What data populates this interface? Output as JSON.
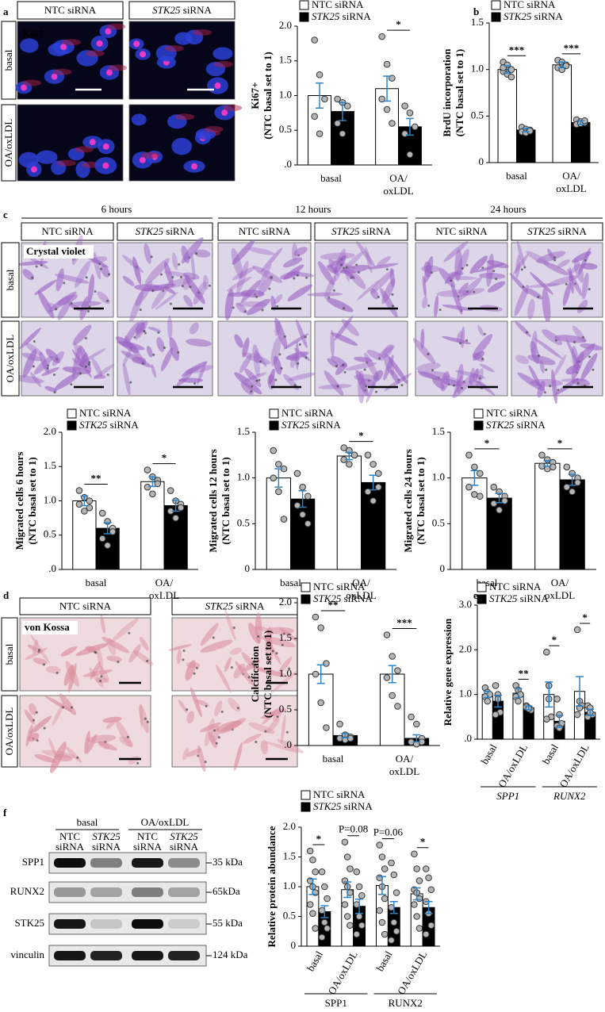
{
  "panel_labels": [
    "a",
    "b",
    "c",
    "d",
    "e",
    "f"
  ],
  "image_panels": {
    "a": {
      "columns": [
        "NTC siRNA",
        "STK25 siRNA"
      ],
      "rows": [
        "basal",
        "OA/oxLDL"
      ],
      "stain": "Ki67"
    },
    "c": {
      "times": [
        "6 hours",
        "12 hours",
        "24 hours"
      ],
      "columns": [
        "NTC siRNA",
        "STK25 siRNA"
      ],
      "rows": [
        "basal",
        "OA/oxLDL"
      ],
      "stain": "Crystal violet"
    },
    "d": {
      "columns": [
        "NTC siRNA",
        "STK25 siRNA"
      ],
      "rows": [
        "basal",
        "OA/oxLDL"
      ],
      "stain": "von Kossa"
    }
  },
  "blot": {
    "conditions": [
      "basal",
      "OA/oxLDL"
    ],
    "lanes": [
      [
        "NTC",
        "siRNA"
      ],
      [
        "STK25",
        "siRNA"
      ],
      [
        "NTC",
        "siRNA"
      ],
      [
        "STK25",
        "siRNA"
      ]
    ],
    "proteins": [
      "SPP1",
      "RUNX2",
      "STK25",
      "vinculin"
    ],
    "sizes": [
      "35 kDa",
      "65kDa",
      "55 kDa",
      "124 kDa"
    ]
  },
  "chart_data": [
    {
      "type": "bar",
      "ylabel": [
        "Ki67+",
        "(NTC basal set to 1)"
      ],
      "categories": [
        [
          "basal"
        ],
        [
          "OA/",
          "oxLDL"
        ]
      ],
      "ylim": [
        0,
        2
      ],
      "yticks": [
        {
          "value": 0,
          "label": ".0"
        },
        0.5,
        {
          "value": 1,
          "label": "1.0"
        },
        1.5,
        {
          "value": 2,
          "label": "2.0"
        }
      ],
      "series": [
        {
          "name": "NTC siRNA",
          "color": "#ffffff",
          "values": [
            1.0,
            1.1
          ],
          "errors": [
            0.18,
            0.18
          ],
          "points": [
            [
              1.8,
              1.3,
              0.95,
              0.7,
              0.45
            ],
            [
              1.85,
              1.45,
              1.25,
              0.95,
              0.8,
              0.6
            ]
          ]
        },
        {
          "name": "STK25 siRNA",
          "color": "#000000",
          "values": [
            0.77,
            0.55
          ],
          "errors": [
            0.13,
            0.12
          ],
          "points": [
            [
              0.95,
              0.9,
              0.85,
              0.6,
              0.45
            ],
            [
              0.85,
              0.75,
              0.55,
              0.45,
              0.15
            ]
          ]
        }
      ],
      "significance": [
        null,
        "*"
      ]
    },
    {
      "type": "bar",
      "ylabel": [
        "BrdU incorporation",
        "(NTC basal set to 1)"
      ],
      "categories": [
        [
          "basal"
        ],
        [
          "OA/",
          "oxLDL"
        ]
      ],
      "ylim": [
        0,
        1.5
      ],
      "yticks": [
        0,
        0.5,
        {
          "value": 1,
          "label": "1.0"
        },
        1.5
      ],
      "series": [
        {
          "name": "NTC siRNA",
          "color": "#ffffff",
          "values": [
            1.0,
            1.05
          ],
          "errors": [
            0.04,
            0.03
          ],
          "points": [
            [
              1.08,
              1.05,
              1.0,
              0.98,
              0.95,
              0.92,
              1.02
            ],
            [
              1.1,
              1.08,
              1.05,
              1.02,
              1.0,
              1.04
            ]
          ]
        },
        {
          "name": "STK25 siRNA",
          "color": "#000000",
          "values": [
            0.35,
            0.43
          ],
          "errors": [
            0.02,
            0.02
          ],
          "points": [
            [
              0.38,
              0.36,
              0.35,
              0.33,
              0.32,
              0.34
            ],
            [
              0.46,
              0.44,
              0.43,
              0.41,
              0.42,
              0.45
            ]
          ]
        }
      ],
      "significance": [
        "***",
        "***"
      ]
    },
    {
      "type": "bar",
      "ylabel": [
        "Migrated cells 6 hours",
        "(NTC basal set to 1)"
      ],
      "categories": [
        [
          "basal"
        ],
        [
          "OA/",
          "oxLDL"
        ]
      ],
      "ylim": [
        0,
        2
      ],
      "yticks": [
        {
          "value": 0,
          "label": ".0"
        },
        0.5,
        {
          "value": 1,
          "label": "1.0"
        },
        1.5,
        {
          "value": 2,
          "label": "2.0"
        }
      ],
      "series": [
        {
          "name": "NTC siRNA",
          "color": "#ffffff",
          "values": [
            1.0,
            1.28
          ],
          "errors": [
            0.07,
            0.07
          ],
          "points": [
            [
              1.15,
              1.05,
              1.0,
              0.95,
              0.85,
              0.9
            ],
            [
              1.45,
              1.35,
              1.3,
              1.2,
              1.1,
              1.25
            ]
          ]
        },
        {
          "name": "STK25 siRNA",
          "color": "#000000",
          "values": [
            0.6,
            0.93
          ],
          "errors": [
            0.08,
            0.08
          ],
          "points": [
            [
              0.82,
              0.7,
              0.6,
              0.45,
              0.35,
              0.55
            ],
            [
              1.15,
              1.0,
              0.95,
              0.85,
              0.75,
              0.9
            ]
          ]
        }
      ],
      "significance": [
        "**",
        "*"
      ]
    },
    {
      "type": "bar",
      "ylabel": [
        "Migrated cells 12 hours",
        "(NTC basal set to 1)"
      ],
      "categories": [
        [
          "basal"
        ],
        [
          "OA/",
          "oxLDL"
        ]
      ],
      "ylim": [
        0,
        1.5
      ],
      "yticks": [
        0,
        0.5,
        {
          "value": 1,
          "label": "1.0"
        },
        1.5
      ],
      "series": [
        {
          "name": "NTC siRNA",
          "color": "#ffffff",
          "values": [
            1.0,
            1.24
          ],
          "errors": [
            0.1,
            0.04
          ],
          "points": [
            [
              1.3,
              1.15,
              1.1,
              1.0,
              0.85,
              0.55
            ],
            [
              1.33,
              1.3,
              1.25,
              1.2,
              1.15,
              1.25
            ]
          ]
        },
        {
          "name": "STK25 siRNA",
          "color": "#000000",
          "values": [
            0.77,
            0.95
          ],
          "errors": [
            0.09,
            0.08
          ],
          "points": [
            [
              1.05,
              0.9,
              0.8,
              0.7,
              0.6,
              0.5
            ],
            [
              1.25,
              1.15,
              1.05,
              0.85,
              0.75,
              0.9
            ]
          ]
        }
      ],
      "significance": [
        null,
        "*"
      ]
    },
    {
      "type": "bar",
      "ylabel": [
        "Migrated cells 24 hours",
        "(NTC basal set to 1)"
      ],
      "categories": [
        [
          "basal"
        ],
        [
          "OA/",
          "oxLDL"
        ]
      ],
      "ylim": [
        0,
        1.5
      ],
      "yticks": [
        0,
        0.5,
        {
          "value": 1,
          "label": "1.0"
        },
        1.5
      ],
      "series": [
        {
          "name": "NTC siRNA",
          "color": "#ffffff",
          "values": [
            1.0,
            1.16
          ],
          "errors": [
            0.08,
            0.03
          ],
          "points": [
            [
              1.25,
              1.12,
              1.05,
              0.9,
              0.82,
              0.8
            ],
            [
              1.25,
              1.2,
              1.17,
              1.13,
              1.1,
              1.12
            ]
          ]
        },
        {
          "name": "STK25 siRNA",
          "color": "#000000",
          "values": [
            0.78,
            0.98
          ],
          "errors": [
            0.05,
            0.06
          ],
          "points": [
            [
              0.9,
              0.85,
              0.8,
              0.72,
              0.65,
              0.75
            ],
            [
              1.12,
              1.05,
              1.0,
              0.9,
              0.85,
              0.95
            ]
          ]
        }
      ],
      "significance": [
        "*",
        "*"
      ]
    },
    {
      "type": "bar",
      "ylabel": [
        "Calcification",
        "(NTC basal set to 1)"
      ],
      "categories": [
        [
          "basal"
        ],
        [
          "OA/",
          "oxLDL"
        ]
      ],
      "ylim": [
        0,
        2
      ],
      "yticks": [
        {
          "value": 0,
          "label": ".0"
        },
        0.5,
        {
          "value": 1,
          "label": "1.0"
        },
        1.5,
        {
          "value": 2,
          "label": "2.0"
        }
      ],
      "series": [
        {
          "name": "NTC siRNA",
          "color": "#ffffff",
          "values": [
            1.0,
            1.0
          ],
          "errors": [
            0.13,
            0.12
          ],
          "points": [
            [
              1.8,
              1.65,
              1.15,
              1.0,
              0.6,
              0.25
            ],
            [
              1.55,
              1.25,
              1.05,
              0.95,
              0.7,
              0.55
            ]
          ]
        },
        {
          "name": "STK25 siRNA",
          "color": "#000000",
          "values": [
            0.14,
            0.1
          ],
          "errors": [
            0.03,
            0.05
          ],
          "points": [
            [
              0.3,
              0.15,
              0.12,
              0.1,
              0.08,
              0.1
            ],
            [
              0.4,
              0.3,
              0.1,
              0.05,
              0.02,
              0.05
            ]
          ]
        }
      ],
      "significance": [
        "**",
        "***"
      ]
    },
    {
      "type": "bar",
      "ylabel": [
        "Relative gene expression"
      ],
      "categories": [
        "basal",
        "OA/oxLDL",
        "basal",
        "OA/oxLDL"
      ],
      "groups": [
        "SPP1",
        "RUNX2"
      ],
      "groups_italic": true,
      "ylim": [
        0,
        3
      ],
      "yticks": [
        {
          "value": 0,
          "label": ".0"
        },
        {
          "value": 1,
          "label": "1.0"
        },
        {
          "value": 2,
          "label": "2.0"
        },
        {
          "value": 3,
          "label": "3.0"
        }
      ],
      "series": [
        {
          "name": "NTC siRNA",
          "color": "#ffffff",
          "values": [
            1.0,
            1.03,
            1.0,
            1.07
          ],
          "errors": [
            0.07,
            0.1,
            0.28,
            0.33
          ],
          "points": [
            [
              1.15,
              1.05,
              1.0,
              0.95,
              0.85
            ],
            [
              1.2,
              1.1,
              1.0,
              0.95,
              0.85
            ],
            [
              1.95,
              1.2,
              0.5,
              0.45,
              0.9
            ],
            [
              2.45,
              0.85,
              0.75,
              0.55,
              0.7
            ]
          ]
        },
        {
          "name": "STK25 siRNA",
          "color": "#000000",
          "values": [
            0.85,
            0.7,
            0.4,
            0.6
          ],
          "errors": [
            0.13,
            0.04,
            0.13,
            0.07
          ],
          "points": [
            [
              1.2,
              1.0,
              0.6,
              0.55,
              0.9
            ],
            [
              0.75,
              0.7,
              0.65,
              0.72,
              0.68
            ],
            [
              0.9,
              0.55,
              0.35,
              0.3,
              0.25
            ],
            [
              0.75,
              0.7,
              0.55,
              0.5,
              0.6
            ]
          ]
        }
      ],
      "significance": [
        null,
        "**",
        "*",
        "*"
      ]
    },
    {
      "type": "bar",
      "ylabel": [
        "Relative protein abundance"
      ],
      "categories": [
        "basal",
        "OA/oxLDL",
        "basal",
        "OA/oxLDL"
      ],
      "groups": [
        "SPP1",
        "RUNX2"
      ],
      "groups_italic": false,
      "ylim": [
        0,
        2
      ],
      "yticks": [
        0,
        0.5,
        {
          "value": 1,
          "label": "1.0"
        },
        1.5,
        {
          "value": 2,
          "label": "2.0"
        }
      ],
      "series": [
        {
          "name": "NTC siRNA",
          "color": "#ffffff",
          "values": [
            1.0,
            0.95,
            1.02,
            0.88
          ],
          "errors": [
            0.13,
            0.13,
            0.15,
            0.1
          ],
          "points": [
            [
              1.6,
              1.45,
              1.25,
              1.1,
              1.0,
              0.9,
              0.7,
              0.55,
              0.3
            ],
            [
              1.75,
              1.5,
              1.3,
              1.1,
              1.0,
              0.9,
              0.7,
              0.5,
              0.35
            ],
            [
              1.7,
              1.5,
              1.3,
              1.15,
              1.0,
              0.8,
              0.6,
              0.4,
              0.2
            ],
            [
              1.55,
              1.3,
              1.1,
              0.95,
              0.9,
              0.8,
              0.7,
              0.5,
              0.3
            ]
          ]
        },
        {
          "name": "STK25 siRNA",
          "color": "#000000",
          "values": [
            0.58,
            0.67,
            0.65,
            0.65
          ],
          "errors": [
            0.1,
            0.12,
            0.1,
            0.1
          ],
          "points": [
            [
              1.25,
              1.0,
              0.8,
              0.6,
              0.4,
              0.3,
              0.15
            ],
            [
              1.25,
              1.0,
              0.85,
              0.7,
              0.5,
              0.35,
              0.2
            ],
            [
              1.4,
              1.2,
              0.9,
              0.65,
              0.4,
              0.25,
              0.1
            ],
            [
              1.3,
              1.15,
              0.95,
              0.75,
              0.55,
              0.35,
              0.2
            ]
          ]
        }
      ],
      "significance": [
        "*",
        "P=0.08",
        "P=0.06",
        "*"
      ]
    }
  ]
}
